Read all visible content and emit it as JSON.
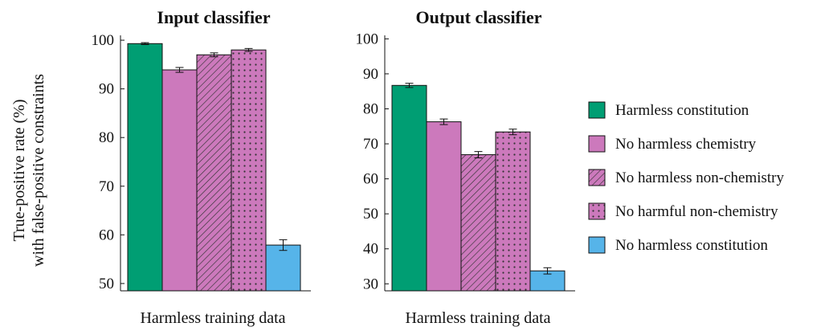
{
  "legend": [
    {
      "label": "Harmless constitution",
      "color": "#009E73",
      "pattern": "none"
    },
    {
      "label": "No harmless chemistry",
      "color": "#CC79BC",
      "pattern": "none"
    },
    {
      "label": "No harmless non-chemistry",
      "color": "#CC79BC",
      "pattern": "hatch"
    },
    {
      "label": "No harmful non-chemistry",
      "color": "#CC79BC",
      "pattern": "dots"
    },
    {
      "label": "No harmless constitution",
      "color": "#56B4E9",
      "pattern": "none"
    }
  ],
  "y_axis_label_line1": "True-positive rate (%)",
  "y_axis_label_line2": "with false-positive constraints",
  "chart_data": [
    {
      "type": "bar",
      "title": "Input classifier",
      "xlabel": "Harmless training data",
      "ylabel": "True-positive rate (%) with false-positive constraints",
      "ylim": [
        48.5,
        101
      ],
      "yticks": [
        50,
        60,
        70,
        80,
        90,
        100
      ],
      "categories": [
        "Harmless constitution",
        "No harmless chemistry",
        "No harmless non-chemistry",
        "No harmful non-chemistry",
        "No harmless constitution"
      ],
      "values": [
        99.3,
        93.9,
        97.0,
        98.0,
        57.9
      ],
      "errors": [
        0.2,
        0.5,
        0.4,
        0.3,
        1.1
      ],
      "grid": false,
      "legend": "right"
    },
    {
      "type": "bar",
      "title": "Output classifier",
      "xlabel": "Harmless training data",
      "ylabel": "",
      "ylim": [
        28,
        101
      ],
      "yticks": [
        30,
        40,
        50,
        60,
        70,
        80,
        90,
        100
      ],
      "categories": [
        "Harmless constitution",
        "No harmless chemistry",
        "No harmless non-chemistry",
        "No harmful non-chemistry",
        "No harmless constitution"
      ],
      "values": [
        86.7,
        76.3,
        66.9,
        73.4,
        33.7
      ],
      "errors": [
        0.6,
        0.8,
        0.9,
        0.8,
        0.9
      ],
      "grid": false,
      "legend": "right"
    }
  ]
}
